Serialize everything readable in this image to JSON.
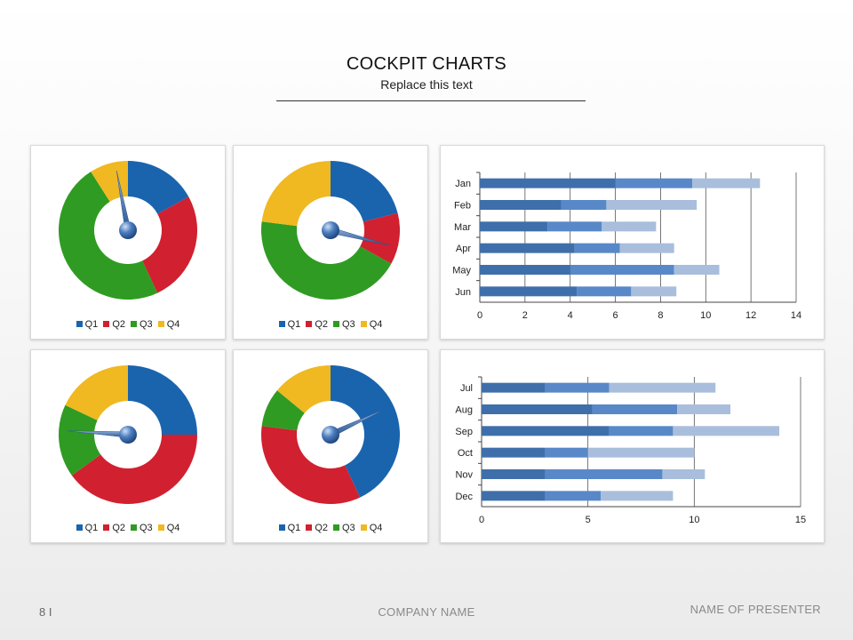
{
  "header": {
    "title": "COCKPIT CHARTS",
    "subtitle": "Replace this text"
  },
  "colors": {
    "q1": "#1a64ae",
    "q2": "#d1202f",
    "q3": "#2f9b22",
    "q4": "#f0b821",
    "bar_dark": "#3f6faa",
    "bar_mid": "#5888c8",
    "bar_light": "#a8bedc"
  },
  "legend": [
    "Q1",
    "Q2",
    "Q3",
    "Q4"
  ],
  "chart_data": [
    {
      "type": "pie",
      "subtype": "gauge-donut",
      "categories": [
        "Q1",
        "Q2",
        "Q3",
        "Q4"
      ],
      "values": [
        17,
        26,
        48,
        9
      ],
      "needle_value": 97
    },
    {
      "type": "pie",
      "subtype": "gauge-donut",
      "categories": [
        "Q1",
        "Q2",
        "Q3",
        "Q4"
      ],
      "values": [
        21,
        12,
        44,
        23
      ],
      "needle_value": 29
    },
    {
      "type": "bar",
      "orientation": "horizontal",
      "stacked": true,
      "categories": [
        "Jan",
        "Feb",
        "Mar",
        "Apr",
        "May",
        "Jun"
      ],
      "series": [
        {
          "values": [
            6.0,
            3.6,
            3.0,
            4.2,
            4.0,
            4.3
          ]
        },
        {
          "values": [
            3.4,
            2.0,
            2.4,
            2.0,
            4.6,
            2.4
          ]
        },
        {
          "values": [
            3.0,
            4.0,
            2.4,
            2.4,
            2.0,
            2.0
          ]
        }
      ],
      "xlim": [
        0,
        14
      ],
      "xticks": [
        0,
        2,
        4,
        6,
        8,
        10,
        12,
        14
      ],
      "grid": true
    },
    {
      "type": "pie",
      "subtype": "gauge-donut",
      "categories": [
        "Q1",
        "Q2",
        "Q3",
        "Q4"
      ],
      "values": [
        25,
        40,
        17,
        18
      ],
      "needle_value": 76
    },
    {
      "type": "pie",
      "subtype": "gauge-donut",
      "categories": [
        "Q1",
        "Q2",
        "Q3",
        "Q4"
      ],
      "values": [
        43,
        34,
        9,
        14
      ],
      "needle_value": 18
    },
    {
      "type": "bar",
      "orientation": "horizontal",
      "stacked": true,
      "categories": [
        "Jul",
        "Aug",
        "Sep",
        "Oct",
        "Nov",
        "Dec"
      ],
      "series": [
        {
          "values": [
            3.0,
            5.2,
            6.0,
            3.0,
            3.0,
            3.0
          ]
        },
        {
          "values": [
            3.0,
            4.0,
            3.0,
            2.0,
            5.5,
            2.6
          ]
        },
        {
          "values": [
            5.0,
            2.5,
            5.0,
            5.0,
            2.0,
            3.4
          ]
        }
      ],
      "xlim": [
        0,
        15
      ],
      "xticks": [
        0,
        5,
        10,
        15
      ],
      "grid": true
    }
  ],
  "footer": {
    "page_number": "8 I",
    "company": "COMPANY NAME",
    "presenter": "NAME OF PRESENTER"
  }
}
